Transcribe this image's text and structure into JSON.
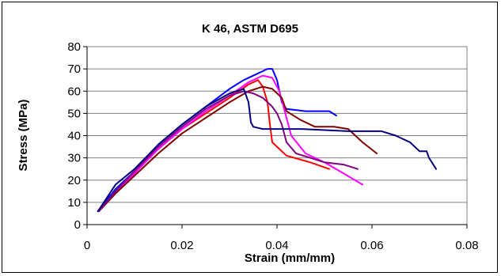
{
  "chart_data": {
    "type": "line",
    "title": "K 46, ASTM D695",
    "xlabel": "Strain (mm/mm)",
    "ylabel": "Stress (MPa)",
    "xlim": [
      0,
      0.08
    ],
    "ylim": [
      0,
      80
    ],
    "xticks": [
      "0",
      "0.02",
      "0.04",
      "0.06",
      "0.08"
    ],
    "yticks": [
      "0",
      "10",
      "20",
      "30",
      "40",
      "50",
      "60",
      "70",
      "80"
    ],
    "grid": "horizontal",
    "legend": "none",
    "series": [
      {
        "color": "#ff0000",
        "x": [
          0.0023,
          0.005,
          0.01,
          0.015,
          0.02,
          0.025,
          0.03,
          0.034,
          0.036,
          0.037,
          0.038,
          0.0385,
          0.039,
          0.04,
          0.042,
          0.047,
          0.051
        ],
        "y": [
          6,
          13,
          24,
          34,
          43,
          50,
          57,
          63,
          65,
          62,
          55,
          45,
          37,
          35,
          31,
          28,
          25
        ]
      },
      {
        "color": "#0000ff",
        "x": [
          0.0023,
          0.006,
          0.01,
          0.015,
          0.02,
          0.025,
          0.03,
          0.033,
          0.036,
          0.038,
          0.039,
          0.04,
          0.041,
          0.042,
          0.046,
          0.051,
          0.0525
        ],
        "y": [
          6,
          16,
          24,
          36,
          45,
          53,
          61,
          65,
          68,
          70,
          70,
          65,
          55,
          52,
          51,
          51,
          49
        ]
      },
      {
        "color": "#ff00ff",
        "x": [
          0.0025,
          0.006,
          0.01,
          0.015,
          0.02,
          0.025,
          0.03,
          0.034,
          0.037,
          0.039,
          0.0405,
          0.042,
          0.043,
          0.046,
          0.05,
          0.054,
          0.058
        ],
        "y": [
          6,
          14,
          23,
          34,
          43,
          51,
          58,
          64,
          67,
          66,
          60,
          48,
          40,
          32,
          28,
          23,
          18
        ]
      },
      {
        "color": "#800000",
        "x": [
          0.0025,
          0.006,
          0.01,
          0.015,
          0.02,
          0.025,
          0.03,
          0.034,
          0.037,
          0.039,
          0.041,
          0.042,
          0.045,
          0.048,
          0.052,
          0.055,
          0.058,
          0.061
        ],
        "y": [
          6,
          14,
          22,
          32,
          41,
          48,
          55,
          60,
          62,
          61,
          57,
          51,
          47,
          44,
          44,
          43,
          37,
          32
        ]
      },
      {
        "color": "#800080",
        "x": [
          0.0025,
          0.006,
          0.01,
          0.015,
          0.02,
          0.025,
          0.03,
          0.033,
          0.035,
          0.037,
          0.039,
          0.04,
          0.041,
          0.042,
          0.044,
          0.047,
          0.05,
          0.054,
          0.057
        ],
        "y": [
          6,
          15,
          24,
          35,
          44,
          52,
          58,
          60,
          59,
          57,
          53,
          50,
          45,
          37,
          32,
          30,
          28,
          27,
          25
        ]
      },
      {
        "color": "#000080",
        "x": [
          0.0023,
          0.006,
          0.01,
          0.015,
          0.02,
          0.025,
          0.03,
          0.033,
          0.034,
          0.0345,
          0.035,
          0.037,
          0.045,
          0.055,
          0.062,
          0.065,
          0.068,
          0.07,
          0.0715,
          0.072,
          0.0735
        ],
        "y": [
          6,
          18,
          25,
          36,
          45,
          53,
          59,
          61,
          55,
          46,
          44,
          43,
          43,
          42,
          42,
          40,
          37,
          33,
          33,
          30,
          25
        ]
      }
    ]
  }
}
